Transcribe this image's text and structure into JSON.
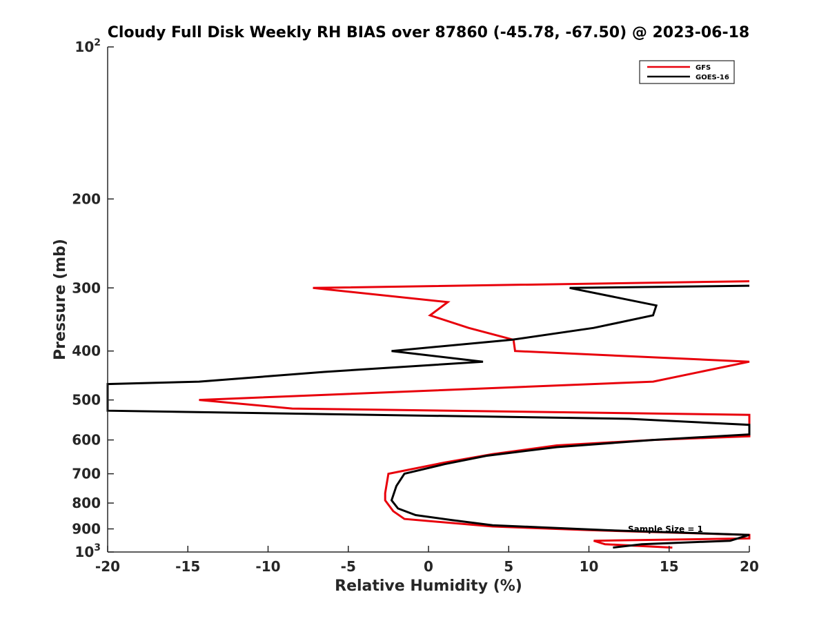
{
  "chart_data": {
    "type": "line",
    "title": "Cloudy Full Disk Weekly RH BIAS over 87860 (-45.78, -67.50) @ 2023-06-18",
    "xlabel": "Relative Humidity (%)",
    "ylabel": "Pressure (mb)",
    "xlim": [
      -20,
      20
    ],
    "ylim": [
      100,
      1000
    ],
    "yscale": "log",
    "y_reversed": true,
    "x_ticks": [
      "-20",
      "-15",
      "-10",
      "-5",
      "0",
      "5",
      "10",
      "15",
      "20"
    ],
    "y_ticks": [
      {
        "value": 100,
        "base": "10",
        "exp": "2"
      },
      {
        "value": 200,
        "label": "200"
      },
      {
        "value": 300,
        "label": "300"
      },
      {
        "value": 400,
        "label": "400"
      },
      {
        "value": 500,
        "label": "500"
      },
      {
        "value": 600,
        "label": "600"
      },
      {
        "value": 700,
        "label": "700"
      },
      {
        "value": 800,
        "label": "800"
      },
      {
        "value": 900,
        "label": "900"
      },
      {
        "value": 1000,
        "base": "10",
        "exp": "3"
      }
    ],
    "grid": false,
    "legend_position": "top-right",
    "annotation": "Sample Size = 1",
    "series": [
      {
        "name": "GFS",
        "color": "#e8000b",
        "points": [
          [
            20,
            291
          ],
          [
            -7.2,
            300
          ],
          [
            1.2,
            320
          ],
          [
            0.1,
            340
          ],
          [
            2.5,
            360
          ],
          [
            5.3,
            380
          ],
          [
            5.4,
            400
          ],
          [
            20,
            420
          ],
          [
            14,
            460
          ],
          [
            -14.3,
            500
          ],
          [
            -8.5,
            520
          ],
          [
            20,
            535
          ],
          [
            20,
            590
          ],
          [
            14,
            600
          ],
          [
            8,
            615
          ],
          [
            4,
            640
          ],
          [
            1,
            665
          ],
          [
            -0.5,
            680
          ],
          [
            -2.5,
            700
          ],
          [
            -2.7,
            765
          ],
          [
            -2.7,
            790
          ],
          [
            -2.2,
            830
          ],
          [
            -1.5,
            860
          ],
          [
            4,
            890
          ],
          [
            10,
            905
          ],
          [
            20,
            925
          ],
          [
            20,
            940
          ],
          [
            10.3,
            950
          ],
          [
            11,
            965
          ],
          [
            15.2,
            980
          ]
        ]
      },
      {
        "name": "GOES-16",
        "color": "#000000",
        "points": [
          [
            20,
            297
          ],
          [
            8.8,
            300
          ],
          [
            14.2,
            325
          ],
          [
            14,
            340
          ],
          [
            10.3,
            360
          ],
          [
            5.2,
            380
          ],
          [
            -2.3,
            400
          ],
          [
            3.4,
            420
          ],
          [
            -6.5,
            440
          ],
          [
            -14.3,
            460
          ],
          [
            -20,
            465
          ],
          [
            -20,
            525
          ],
          [
            12.5,
            545
          ],
          [
            20,
            560
          ],
          [
            20,
            585
          ],
          [
            14,
            600
          ],
          [
            8,
            620
          ],
          [
            3.6,
            645
          ],
          [
            1,
            670
          ],
          [
            -1.5,
            700
          ],
          [
            -2,
            740
          ],
          [
            -2.3,
            790
          ],
          [
            -1.9,
            820
          ],
          [
            -0.8,
            845
          ],
          [
            1.5,
            865
          ],
          [
            4,
            885
          ],
          [
            11,
            905
          ],
          [
            20,
            925
          ],
          [
            18.8,
            950
          ],
          [
            13.3,
            965
          ],
          [
            11.5,
            980
          ]
        ]
      }
    ]
  }
}
